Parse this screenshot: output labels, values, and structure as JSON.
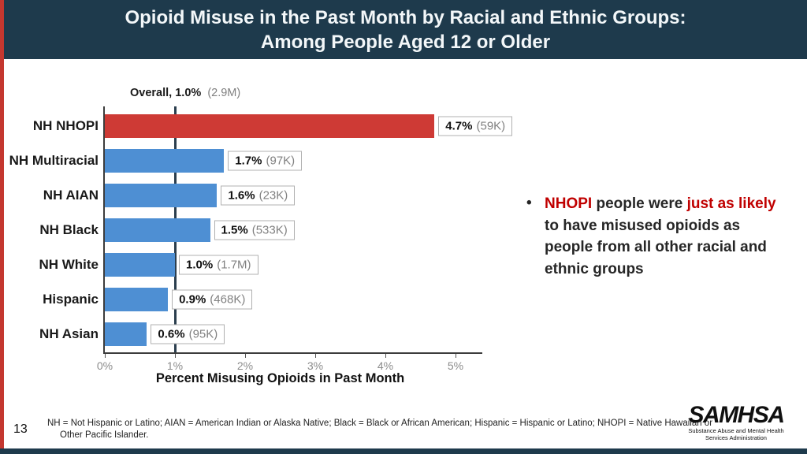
{
  "slide": {
    "page_number": "13",
    "accent_red": "#c4372f",
    "navy": "#1e3a4c"
  },
  "header": {
    "title_line1": "Opioid Misuse in the Past Month by Racial and Ethnic Groups:",
    "title_line2": "Among People Aged 12 or Older"
  },
  "chart_data": {
    "type": "bar",
    "orientation": "horizontal",
    "categories": [
      "NH NHOPI",
      "NH Multiracial",
      "NH AIAN",
      "NH Black",
      "NH White",
      "Hispanic",
      "NH Asian"
    ],
    "values": [
      4.7,
      1.7,
      1.6,
      1.5,
      1.0,
      0.9,
      0.6
    ],
    "value_labels": [
      "4.7%",
      "1.7%",
      "1.6%",
      "1.5%",
      "1.0%",
      "0.9%",
      "0.6%"
    ],
    "count_labels": [
      "(59K)",
      "(97K)",
      "(23K)",
      "(533K)",
      "(1.7M)",
      "(468K)",
      "(95K)"
    ],
    "bar_colors": [
      "#ce3a35",
      "#4e8fd3",
      "#4e8fd3",
      "#4e8fd3",
      "#4e8fd3",
      "#4e8fd3",
      "#4e8fd3"
    ],
    "highlight_color": "#ce3a35",
    "default_color": "#4e8fd3",
    "overall_label": "Overall, 1.0%",
    "overall_count": "(2.9M)",
    "reference_line_x": 1.0,
    "xlabel": "Percent Misusing Opioids in Past Month",
    "x_ticks": [
      "0%",
      "1%",
      "2%",
      "3%",
      "4%",
      "5%"
    ],
    "xlim": [
      0,
      5
    ],
    "grid": false,
    "legend": false
  },
  "bullet": {
    "marker": "•",
    "red": "#c00000",
    "dark": "#262626",
    "segments": [
      {
        "text": "NHOPI",
        "style": "red"
      },
      {
        "text": " people were ",
        "style": "dark"
      },
      {
        "text": "just as likely",
        "style": "red"
      },
      {
        "text": " to have misused opioids as people from all other racial and ethnic groups",
        "style": "dark"
      }
    ]
  },
  "footnote": {
    "line1": "NH = Not Hispanic or Latino; AIAN = American Indian or Alaska Native; Black = Black or African American; Hispanic = Hispanic or Latino; NHOPI = Native Hawaiian or",
    "line2": "Other Pacific Islander."
  },
  "logo": {
    "name": "SAMHSA",
    "sub_line1": "Substance Abuse and Mental Health",
    "sub_line2": "Services Administration"
  }
}
